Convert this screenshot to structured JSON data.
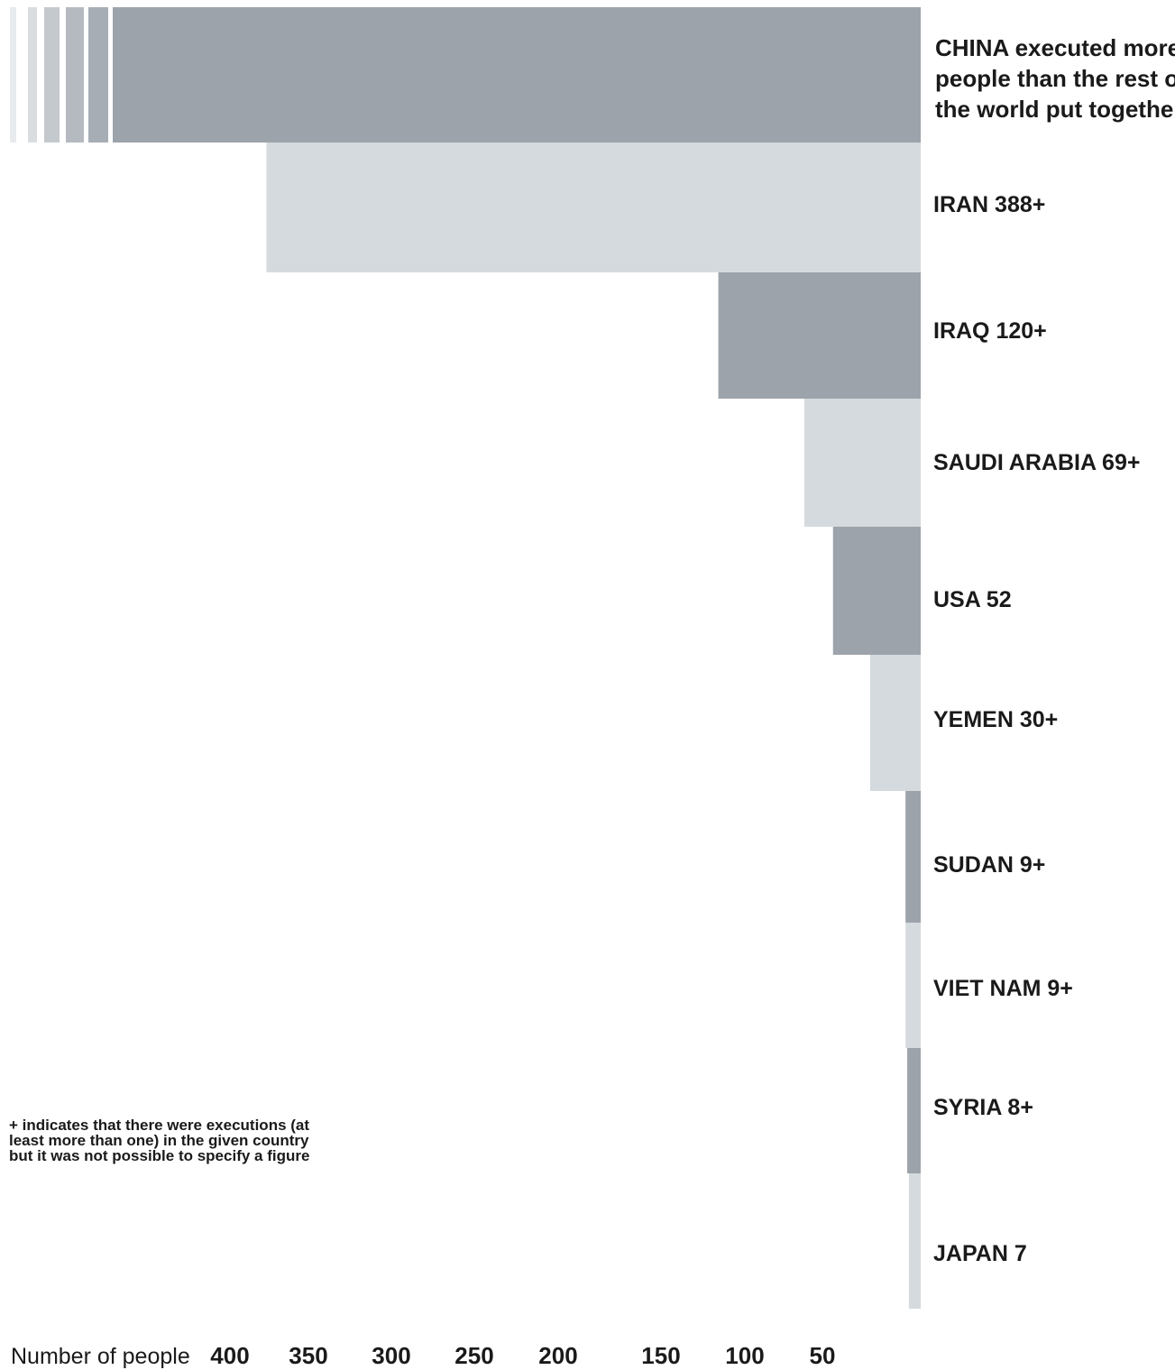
{
  "chart_data": {
    "type": "bar",
    "orientation": "horizontal",
    "direction": "right-to-left",
    "xlabel": "Number of people",
    "ticks": [
      "400",
      "350",
      "300",
      "250",
      "200",
      "150",
      "100",
      "50"
    ],
    "bars": [
      {
        "label": "CHINA executed more people than the rest of the world put together",
        "value": null,
        "truncated": true,
        "color": "#9ca3ab"
      },
      {
        "label": "IRAN 388+",
        "value": 388,
        "color": "#d5dade"
      },
      {
        "label": "IRAQ 120+",
        "value": 120,
        "color": "#9ca3ab"
      },
      {
        "label": "SAUDI ARABIA 69+",
        "value": 69,
        "color": "#d5dade"
      },
      {
        "label": "USA 52",
        "value": 52,
        "color": "#9ca3ab"
      },
      {
        "label": "YEMEN 30+",
        "value": 30,
        "color": "#d5dade"
      },
      {
        "label": "SUDAN 9+",
        "value": 9,
        "color": "#9ca3ab"
      },
      {
        "label": "VIET NAM 9+",
        "value": 9,
        "color": "#d5dade"
      },
      {
        "label": "SYRIA 8+",
        "value": 8,
        "color": "#9ca3ab"
      },
      {
        "label": "JAPAN 7",
        "value": 7,
        "color": "#d5dade"
      }
    ]
  },
  "note": "+ indicates that there were executions (at least more than one) in the given country but it was not possible to specify a figure",
  "colors": {
    "dark": "#9ca3ab",
    "light": "#d5dade",
    "text": "#1a1a1a"
  }
}
